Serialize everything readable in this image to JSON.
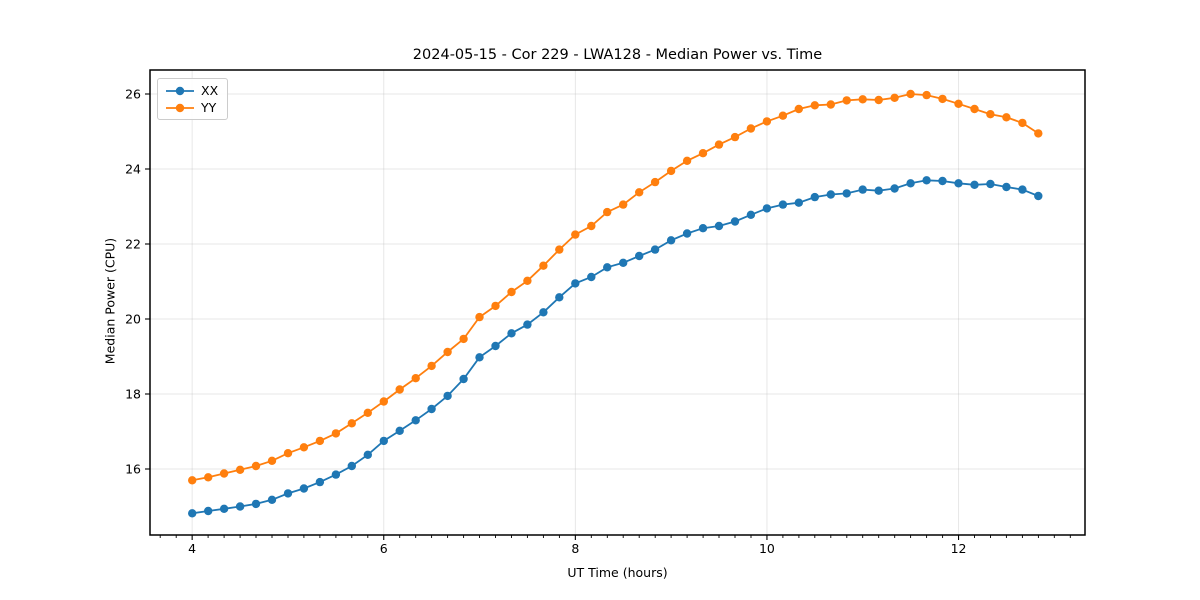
{
  "chart_data": {
    "type": "line",
    "title": "2024-05-15 - Cor 229 - LWA128 - Median Power vs. Time",
    "xlabel": "UT Time (hours)",
    "ylabel": "Median Power (CPU)",
    "xlim": [
      3.56,
      13.32
    ],
    "ylim": [
      14.24,
      26.64
    ],
    "xticks": [
      4,
      6,
      8,
      10,
      12
    ],
    "yticks": [
      16,
      18,
      20,
      22,
      24,
      26
    ],
    "x_minor_tick_step": 0.1667,
    "grid": true,
    "legend_position": "upper left",
    "x": [
      4.0,
      4.167,
      4.333,
      4.5,
      4.667,
      4.833,
      5.0,
      5.167,
      5.333,
      5.5,
      5.667,
      5.833,
      6.0,
      6.167,
      6.333,
      6.5,
      6.667,
      6.833,
      7.0,
      7.167,
      7.333,
      7.5,
      7.667,
      7.833,
      8.0,
      8.167,
      8.333,
      8.5,
      8.667,
      8.833,
      9.0,
      9.167,
      9.333,
      9.5,
      9.667,
      9.833,
      10.0,
      10.167,
      10.333,
      10.5,
      10.667,
      10.833,
      11.0,
      11.167,
      11.333,
      11.5,
      11.667,
      11.833,
      12.0,
      12.167,
      12.333,
      12.5,
      12.667,
      12.833
    ],
    "series": [
      {
        "name": "XX",
        "color": "#1f77b4",
        "values": [
          14.82,
          14.88,
          14.94,
          15.0,
          15.07,
          15.18,
          15.35,
          15.48,
          15.65,
          15.85,
          16.08,
          16.38,
          16.75,
          17.02,
          17.3,
          17.6,
          17.95,
          18.4,
          18.98,
          19.28,
          19.62,
          19.85,
          20.18,
          20.58,
          20.95,
          21.12,
          21.38,
          21.5,
          21.68,
          21.85,
          22.1,
          22.28,
          22.42,
          22.48,
          22.6,
          22.78,
          22.95,
          23.05,
          23.1,
          23.25,
          23.32,
          23.35,
          23.45,
          23.42,
          23.48,
          23.62,
          23.7,
          23.68,
          23.62,
          23.58,
          23.6,
          23.52,
          23.45,
          23.28
        ]
      },
      {
        "name": "YY",
        "color": "#ff7f0e",
        "values": [
          15.7,
          15.78,
          15.88,
          15.98,
          16.08,
          16.22,
          16.42,
          16.58,
          16.75,
          16.95,
          17.22,
          17.5,
          17.8,
          18.12,
          18.42,
          18.75,
          19.12,
          19.47,
          20.05,
          20.35,
          20.72,
          21.02,
          21.42,
          21.85,
          22.25,
          22.48,
          22.85,
          23.05,
          23.38,
          23.65,
          23.95,
          24.22,
          24.42,
          24.65,
          24.85,
          25.08,
          25.27,
          25.42,
          25.6,
          25.7,
          25.72,
          25.83,
          25.86,
          25.84,
          25.9,
          26.0,
          25.97,
          25.87,
          25.74,
          25.6,
          25.46,
          25.38,
          25.23,
          24.95
        ]
      }
    ]
  }
}
